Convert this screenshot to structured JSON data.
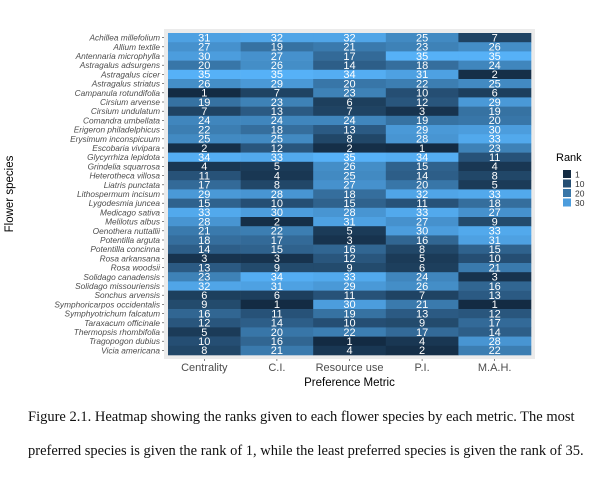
{
  "chart_data": {
    "type": "heatmap",
    "xlabel": "Preference Metric",
    "ylabel": "Flower species",
    "categories": [
      "Centrality",
      "C.I.",
      "Resource use",
      "P.I.",
      "M.A.H."
    ],
    "rows": [
      "Achillea millefolium",
      "Allium textile",
      "Antennaria microphylla",
      "Astragalus adsurgens",
      "Astragalus cicer",
      "Astragalus striatus",
      "Campanula rotundifolia",
      "Cirsium arvense",
      "Cirsium undulatum",
      "Comandra umbellata",
      "Erigeron philadelphicus",
      "Erysimum inconspicuum",
      "Escobaria vivipara",
      "Glycyrrhiza lepidota",
      "Grindelia squarrosa",
      "Heterotheca villosa",
      "Liatris punctata",
      "Lithospermum incisum",
      "Lygodesmia juncea",
      "Medicago sativa",
      "Melilotus albus",
      "Oenothera nuttallii",
      "Potentilla arguta",
      "Potentilla concinna",
      "Rosa arkansana",
      "Rosa woodsii",
      "Solidago canadensis",
      "Solidago missouriensis",
      "Sonchus arvensis",
      "Symphoricarpos occidentalis",
      "Symphyotrichum falcatum",
      "Taraxacum officinale",
      "Thermopsis rhombifolia",
      "Tragopogon dubius",
      "Vicia americana"
    ],
    "values": [
      [
        31,
        32,
        32,
        25,
        7
      ],
      [
        27,
        19,
        21,
        23,
        26
      ],
      [
        30,
        27,
        17,
        35,
        35
      ],
      [
        20,
        26,
        14,
        18,
        24
      ],
      [
        35,
        35,
        34,
        31,
        2
      ],
      [
        26,
        29,
        20,
        22,
        25
      ],
      [
        1,
        7,
        23,
        10,
        6
      ],
      [
        19,
        23,
        6,
        12,
        29
      ],
      [
        7,
        13,
        7,
        3,
        19
      ],
      [
        24,
        24,
        24,
        19,
        20
      ],
      [
        22,
        18,
        13,
        29,
        30
      ],
      [
        25,
        25,
        8,
        28,
        33
      ],
      [
        2,
        12,
        2,
        1,
        23
      ],
      [
        34,
        33,
        35,
        34,
        11
      ],
      [
        4,
        5,
        26,
        15,
        4
      ],
      [
        11,
        4,
        25,
        14,
        8
      ],
      [
        17,
        8,
        27,
        20,
        5
      ],
      [
        29,
        28,
        18,
        32,
        33
      ],
      [
        15,
        10,
        15,
        11,
        18
      ],
      [
        33,
        30,
        28,
        33,
        27
      ],
      [
        28,
        2,
        31,
        27,
        9
      ],
      [
        21,
        22,
        5,
        30,
        33
      ],
      [
        18,
        17,
        3,
        16,
        31
      ],
      [
        14,
        15,
        16,
        8,
        15
      ],
      [
        3,
        3,
        12,
        5,
        10
      ],
      [
        13,
        9,
        9,
        6,
        21
      ],
      [
        23,
        34,
        33,
        24,
        3
      ],
      [
        32,
        31,
        29,
        26,
        16
      ],
      [
        6,
        6,
        11,
        7,
        13
      ],
      [
        9,
        1,
        30,
        21,
        1
      ],
      [
        16,
        11,
        19,
        13,
        12
      ],
      [
        12,
        14,
        10,
        9,
        17
      ],
      [
        5,
        20,
        22,
        17,
        14
      ],
      [
        10,
        16,
        1,
        4,
        28
      ],
      [
        8,
        21,
        4,
        2,
        22
      ]
    ],
    "color_range": [
      1,
      35
    ],
    "low_color": "#132B43",
    "high_color": "#56B1F7",
    "legend": {
      "title": "Rank",
      "placement": "right",
      "ticks": [
        "1",
        "10",
        "20",
        "30"
      ],
      "tick_values": [
        1,
        10,
        20,
        30
      ]
    },
    "grid": false
  },
  "caption": {
    "line1": "Figure 2.1. Heatmap showing the ranks given to each flower species by each metric. The most",
    "line2": "preferred species is given the rank of 1, while the least preferred species is given the rank of 35."
  }
}
